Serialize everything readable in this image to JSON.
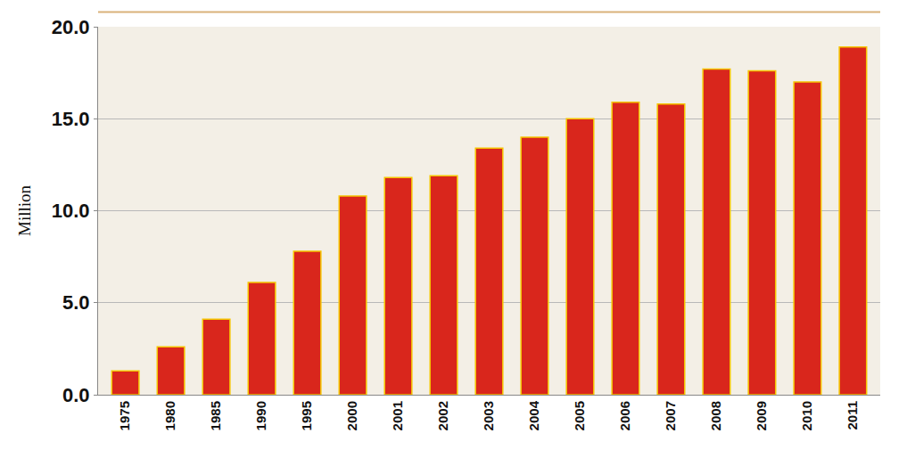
{
  "chart_data": {
    "type": "bar",
    "y_label": "Million",
    "categories": [
      "1975",
      "1980",
      "1985",
      "1990",
      "1995",
      "2000",
      "2001",
      "2002",
      "2003",
      "2004",
      "2005",
      "2006",
      "2007",
      "2008",
      "2009",
      "2010",
      "2011"
    ],
    "values": [
      1.3,
      2.6,
      4.1,
      6.1,
      7.8,
      10.8,
      11.8,
      11.9,
      13.4,
      14.0,
      15.0,
      15.9,
      15.8,
      17.7,
      17.6,
      17.0,
      18.9
    ],
    "color": "#d9261c",
    "ylim": [
      0,
      20
    ],
    "yticks": [
      {
        "value": 0,
        "label": "0.0"
      },
      {
        "value": 5,
        "label": "5.0"
      },
      {
        "value": 10,
        "label": "10.0"
      },
      {
        "value": 15,
        "label": "15.0"
      },
      {
        "value": 20,
        "label": "20.0"
      }
    ],
    "grid": true
  }
}
